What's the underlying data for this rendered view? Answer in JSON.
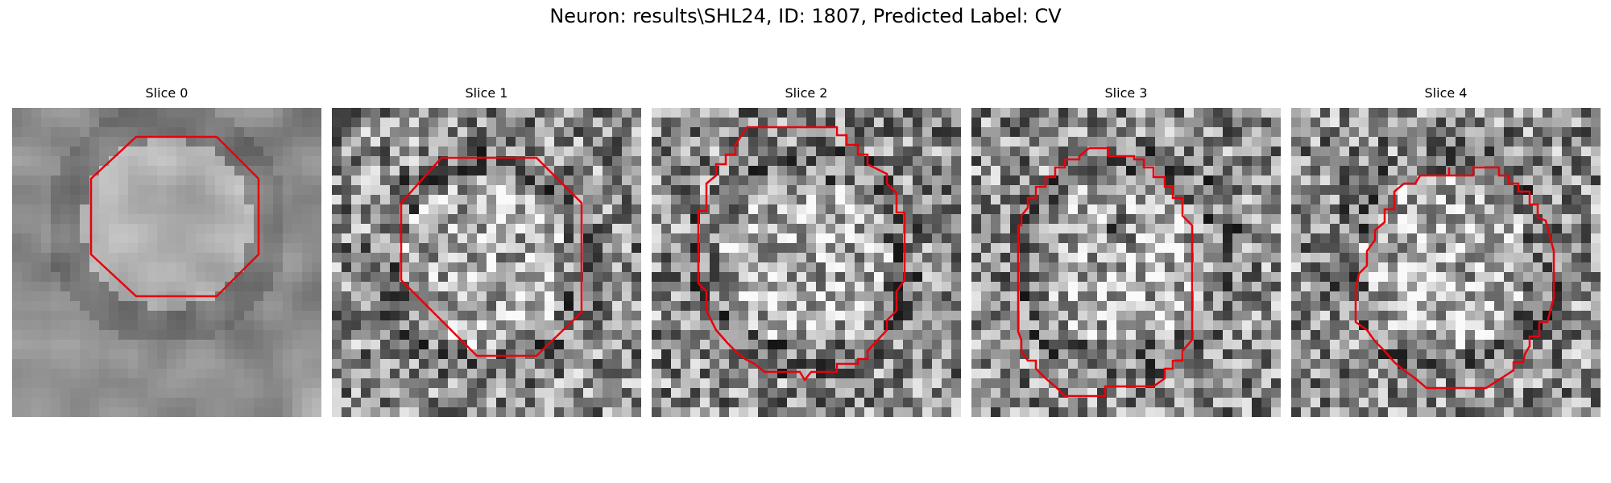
{
  "figure": {
    "title": "Neuron: results\\SHL24, ID: 1807, Predicted Label: CV"
  },
  "panels": [
    {
      "title": "Slice 0",
      "outline_color": "#e8000b",
      "colormap": "gray"
    },
    {
      "title": "Slice 1",
      "outline_color": "#e8000b",
      "colormap": "gray"
    },
    {
      "title": "Slice 2",
      "outline_color": "#e8000b",
      "colormap": "gray"
    },
    {
      "title": "Slice 3",
      "outline_color": "#e8000b",
      "colormap": "gray"
    },
    {
      "title": "Slice 4",
      "outline_color": "#e8000b",
      "colormap": "gray"
    }
  ]
}
